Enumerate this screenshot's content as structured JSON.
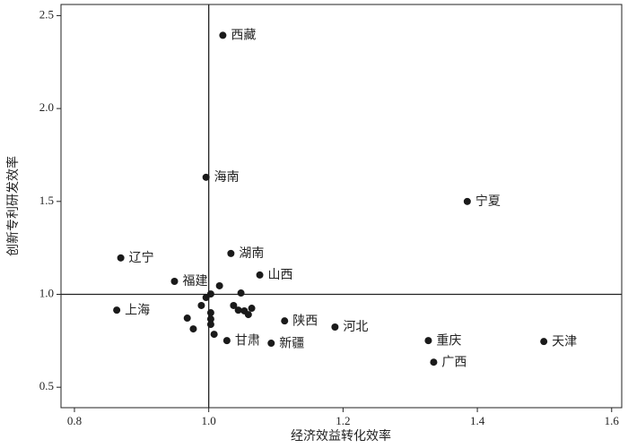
{
  "chart_data": {
    "type": "scatter",
    "x_label": "经济效益转化效率",
    "y_label": "创新专利研发效率",
    "color": "#1a1a1a",
    "xlim": [
      0.78,
      1.615
    ],
    "ylim": [
      0.39,
      2.56
    ],
    "xticks": [
      0.8,
      {
        "value": 1,
        "label": "1.0"
      },
      1.2,
      1.4,
      1.6
    ],
    "yticks": [
      0.5,
      {
        "value": 1,
        "label": "1.0"
      },
      1.5,
      {
        "value": 2,
        "label": "2.0"
      },
      2.5
    ],
    "reference_lines": {
      "x": 1,
      "y": 1
    },
    "x": [
      1.021,
      0.996,
      1.385,
      0.869,
      1.033,
      1.076,
      0.949,
      0.863,
      1.113,
      1.188,
      1.027,
      1.093,
      1.327,
      1.499,
      1.335,
      1.016,
      1.003,
      0.996,
      1.048,
      0.989,
      1.003,
      1.037,
      1.044,
      1.064,
      1.053,
      1.059,
      0.968,
      1.003,
      1.003,
      0.977,
      1.008
    ],
    "values": [
      2.394,
      1.63,
      1.5,
      1.196,
      1.22,
      1.104,
      1.07,
      0.915,
      0.857,
      0.824,
      0.751,
      0.737,
      0.751,
      0.746,
      0.635,
      1.046,
      1.002,
      0.983,
      1.007,
      0.94,
      0.901,
      0.94,
      0.915,
      0.925,
      0.911,
      0.891,
      0.872,
      0.867,
      0.838,
      0.814,
      0.785
    ],
    "labels": [
      "西藏",
      "海南",
      "宁夏",
      "辽宁",
      "湖南",
      "山西",
      "福建",
      "上海",
      "陕西",
      "河北",
      "甘肃",
      "新疆",
      "重庆",
      "天津",
      "广西",
      null,
      null,
      null,
      null,
      null,
      null,
      null,
      null,
      null,
      null,
      null,
      null,
      null,
      null,
      null,
      null
    ]
  }
}
